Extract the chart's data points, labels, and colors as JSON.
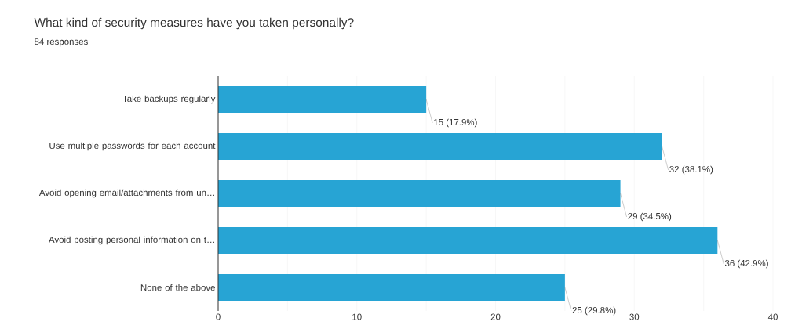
{
  "chart_data": {
    "type": "bar",
    "orientation": "horizontal",
    "title": "What kind of security measures have you taken personally?",
    "subtitle": "84 responses",
    "categories": [
      "Take backups regularly",
      "Use multiple passwords for each account",
      "Avoid opening email/attachments from un…",
      "Avoid posting personal information on t…",
      "None of the above"
    ],
    "values": [
      15,
      32,
      29,
      36,
      25
    ],
    "value_labels": [
      "15 (17.9%)",
      "32 (38.1%)",
      "29 (34.5%)",
      "36 (42.9%)",
      "25 (29.8%)"
    ],
    "color": "#27a4d4",
    "xlim": [
      0,
      40
    ],
    "xticks": [
      0,
      {
        "value": 5,
        "label": null
      },
      10,
      {
        "value": 15,
        "label": null
      },
      20,
      {
        "value": 25,
        "label": null
      },
      30,
      {
        "value": 35,
        "label": null
      },
      40
    ],
    "grid": "x"
  }
}
